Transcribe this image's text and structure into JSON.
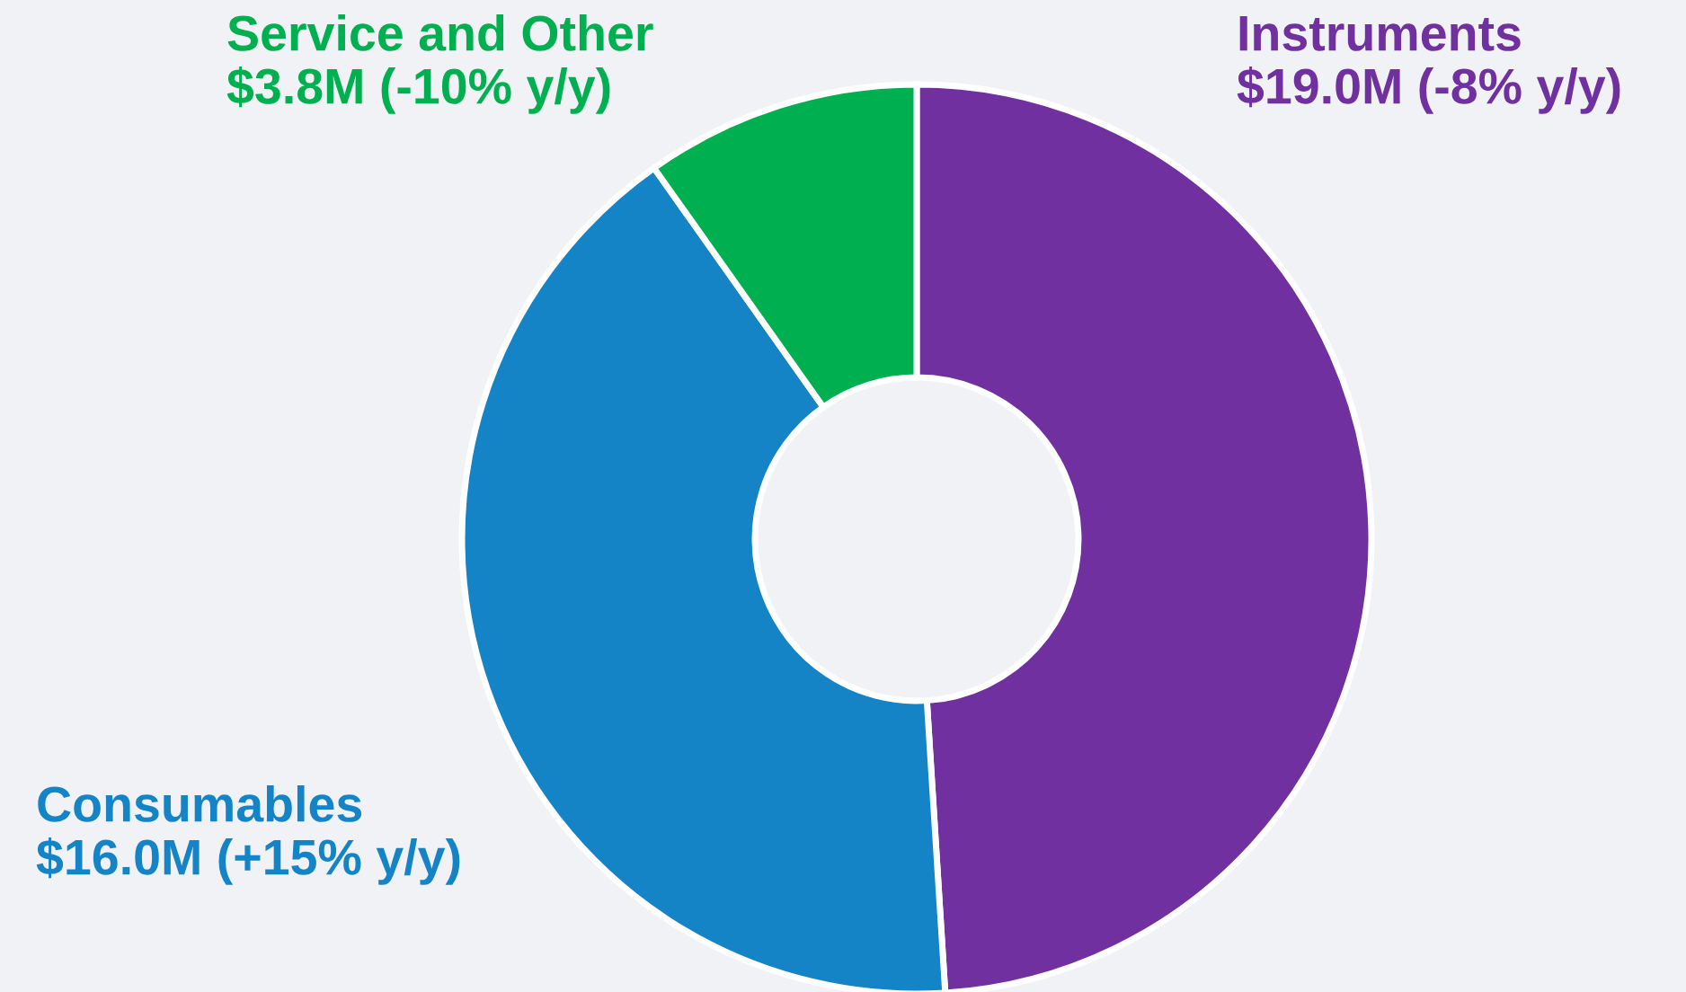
{
  "chart_data": {
    "type": "donut",
    "categories": [
      "Instruments",
      "Consumables",
      "Service and Other"
    ],
    "values": [
      49.0,
      41.2,
      9.8
    ],
    "colors": [
      "#7030a0",
      "#1584c6",
      "#00b050"
    ],
    "annotations": [
      "$19.0M (-8% y/y)",
      "$16.0M (+15% y/y)",
      "$3.8M (-10% y/y)"
    ],
    "legend": false
  }
}
